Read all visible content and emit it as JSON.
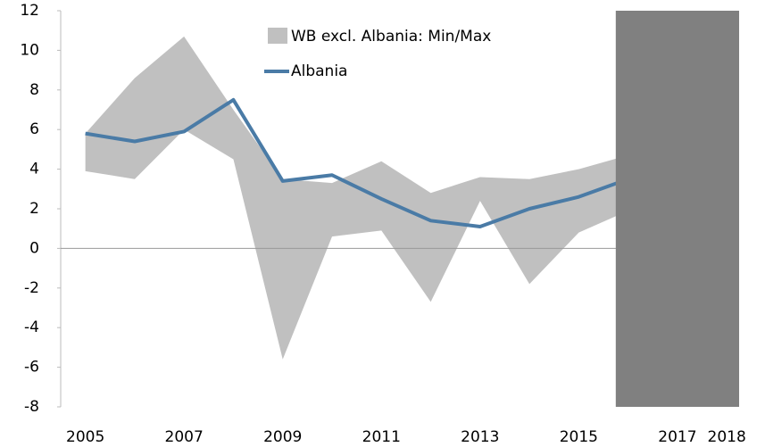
{
  "chart_data": {
    "type": "line",
    "x": [
      2005,
      2006,
      2007,
      2008,
      2009,
      2010,
      2011,
      2012,
      2013,
      2014,
      2015,
      2016
    ],
    "band": {
      "name": "WB excl. Albania: Min/Max",
      "color": "#c0c0c0",
      "low": [
        3.9,
        3.5,
        6.0,
        4.5,
        -5.6,
        0.6,
        0.9,
        -2.7,
        2.4,
        -1.8,
        0.8,
        1.9
      ],
      "high": [
        5.8,
        8.6,
        10.7,
        7.0,
        3.5,
        3.3,
        4.4,
        2.8,
        3.6,
        3.5,
        4.0,
        4.7
      ]
    },
    "series": [
      {
        "name": "Albania",
        "color": "#4a7ba6",
        "values": [
          5.8,
          5.4,
          5.9,
          7.5,
          3.4,
          3.7,
          2.5,
          1.4,
          1.1,
          2.0,
          2.6,
          3.5
        ]
      }
    ],
    "shaded_region": {
      "x": [
        2015.75,
        2018.25
      ],
      "color": "#808080"
    },
    "xlim": [
      2004.5,
      2018.25
    ],
    "xticks": [
      2005,
      2007,
      2009,
      2011,
      2013,
      2015,
      2017,
      2018
    ],
    "ylim": [
      -8,
      12
    ],
    "yticks": [
      -8,
      -6,
      -4,
      -2,
      0,
      2,
      4,
      6,
      8,
      10,
      12
    ]
  }
}
